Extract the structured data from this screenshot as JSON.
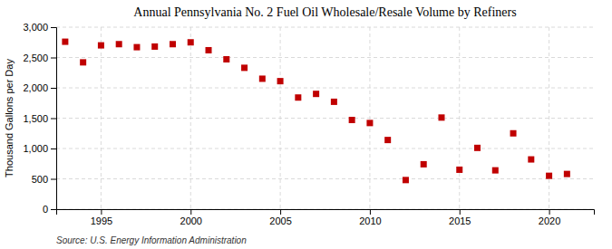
{
  "chart_data": {
    "type": "scatter",
    "title": "Annual Pennsylvania No. 2 Fuel Oil Wholesale/Resale Volume by Refiners",
    "ylabel": "Thousand Gallons per Day",
    "source": "Source: U.S. Energy Information Administration",
    "x": [
      1993,
      1994,
      1995,
      1996,
      1997,
      1998,
      1999,
      2000,
      2001,
      2002,
      2003,
      2004,
      2005,
      2006,
      2007,
      2008,
      2009,
      2010,
      2011,
      2012,
      2013,
      2014,
      2015,
      2016,
      2017,
      2018,
      2019,
      2020,
      2021
    ],
    "values": [
      2760,
      2420,
      2700,
      2720,
      2670,
      2680,
      2720,
      2750,
      2620,
      2470,
      2330,
      2150,
      2110,
      1840,
      1900,
      1770,
      1470,
      1420,
      1140,
      480,
      740,
      1510,
      650,
      1010,
      640,
      1250,
      820,
      550,
      580
    ],
    "color": "#c00000",
    "marker": "square",
    "xlim": [
      1992.5,
      2022.5
    ],
    "xticks": [
      1995,
      2000,
      2005,
      2010,
      2015,
      2020
    ],
    "ylim": [
      0,
      3000
    ],
    "yticks": [
      0,
      500,
      {
        "value": 1000,
        "label": "1,000"
      },
      {
        "value": 1500,
        "label": "1,500"
      },
      {
        "value": 2000,
        "label": "2,000"
      },
      {
        "value": 2500,
        "label": "2,500"
      },
      {
        "value": 3000,
        "label": "3,000"
      }
    ],
    "grid": true
  }
}
